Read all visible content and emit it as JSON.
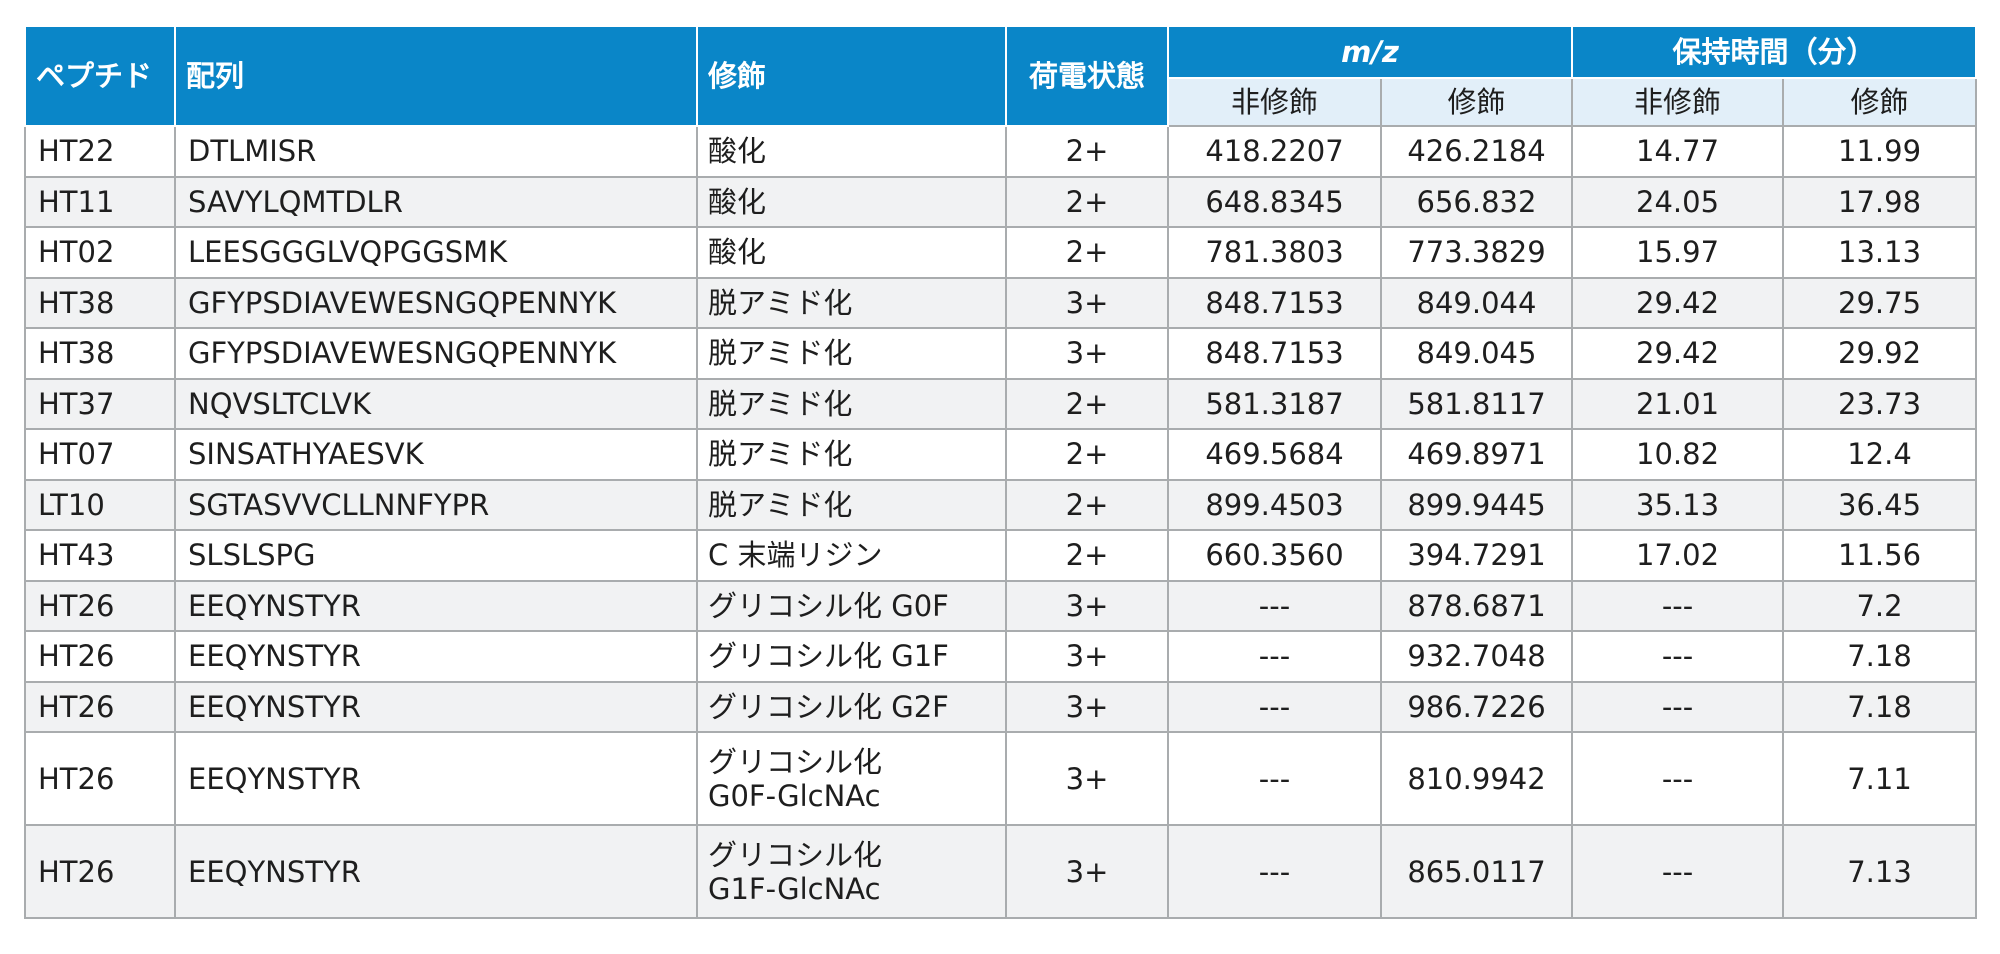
{
  "table": {
    "headers": {
      "peptide": "ペプチド",
      "sequence": "配列",
      "modification": "修飾",
      "charge": "荷電状態",
      "mz_group": "m/z",
      "rt_group": "保持時間（分）",
      "mz_unmod": "非修飾",
      "mz_mod": "修飾",
      "rt_unmod": "非修飾",
      "rt_mod": "修飾"
    },
    "rows": [
      {
        "peptide": "HT22",
        "sequence": "DTLMISR",
        "modification": [
          "酸化"
        ],
        "charge": "2+",
        "mz_unmod": "418.2207",
        "mz_mod": "426.2184",
        "rt_unmod": "14.77",
        "rt_mod": "11.99"
      },
      {
        "peptide": "HT11",
        "sequence": "SAVYLQMTDLR",
        "modification": [
          "酸化"
        ],
        "charge": "2+",
        "mz_unmod": "648.8345",
        "mz_mod": "656.832",
        "rt_unmod": "24.05",
        "rt_mod": "17.98"
      },
      {
        "peptide": "HT02",
        "sequence": "LEESGGGLVQPGGSMK",
        "modification": [
          "酸化"
        ],
        "charge": "2+",
        "mz_unmod": "781.3803",
        "mz_mod": "773.3829",
        "rt_unmod": "15.97",
        "rt_mod": "13.13"
      },
      {
        "peptide": "HT38",
        "sequence": "GFYPSDIAVEWESNGQPENNYK",
        "modification": [
          "脱アミド化"
        ],
        "charge": "3+",
        "mz_unmod": "848.7153",
        "mz_mod": "849.044",
        "rt_unmod": "29.42",
        "rt_mod": "29.75"
      },
      {
        "peptide": "HT38",
        "sequence": "GFYPSDIAVEWESNGQPENNYK",
        "modification": [
          "脱アミド化"
        ],
        "charge": "3+",
        "mz_unmod": "848.7153",
        "mz_mod": "849.045",
        "rt_unmod": "29.42",
        "rt_mod": "29.92"
      },
      {
        "peptide": "HT37",
        "sequence": "NQVSLTCLVK",
        "modification": [
          "脱アミド化"
        ],
        "charge": "2+",
        "mz_unmod": "581.3187",
        "mz_mod": "581.8117",
        "rt_unmod": "21.01",
        "rt_mod": "23.73"
      },
      {
        "peptide": "HT07",
        "sequence": "SINSATHYAESVK",
        "modification": [
          "脱アミド化"
        ],
        "charge": "2+",
        "mz_unmod": "469.5684",
        "mz_mod": "469.8971",
        "rt_unmod": "10.82",
        "rt_mod": "12.4"
      },
      {
        "peptide": "LT10",
        "sequence": "SGTASVVCLLNNFYPR",
        "modification": [
          "脱アミド化"
        ],
        "charge": "2+",
        "mz_unmod": "899.4503",
        "mz_mod": "899.9445",
        "rt_unmod": "35.13",
        "rt_mod": "36.45"
      },
      {
        "peptide": "HT43",
        "sequence": "SLSLSPG",
        "modification": [
          "C 末端リジン"
        ],
        "charge": "2+",
        "mz_unmod": "660.3560",
        "mz_mod": "394.7291",
        "rt_unmod": "17.02",
        "rt_mod": "11.56"
      },
      {
        "peptide": "HT26",
        "sequence": "EEQYNSTYR",
        "modification": [
          "グリコシル化 G0F"
        ],
        "charge": "3+",
        "mz_unmod": "---",
        "mz_mod": "878.6871",
        "rt_unmod": "---",
        "rt_mod": "7.2"
      },
      {
        "peptide": "HT26",
        "sequence": "EEQYNSTYR",
        "modification": [
          "グリコシル化 G1F"
        ],
        "charge": "3+",
        "mz_unmod": "---",
        "mz_mod": "932.7048",
        "rt_unmod": "---",
        "rt_mod": "7.18"
      },
      {
        "peptide": "HT26",
        "sequence": "EEQYNSTYR",
        "modification": [
          "グリコシル化 G2F"
        ],
        "charge": "3+",
        "mz_unmod": "---",
        "mz_mod": "986.7226",
        "rt_unmod": "---",
        "rt_mod": "7.18"
      },
      {
        "peptide": "HT26",
        "sequence": "EEQYNSTYR",
        "modification": [
          "グリコシル化",
          "G0F-GlcNAc"
        ],
        "charge": "3+",
        "mz_unmod": "---",
        "mz_mod": "810.9942",
        "rt_unmod": "---",
        "rt_mod": "7.11"
      },
      {
        "peptide": "HT26",
        "sequence": "EEQYNSTYR",
        "modification": [
          "グリコシル化",
          "G1F-GlcNAc"
        ],
        "charge": "3+",
        "mz_unmod": "---",
        "mz_mod": "865.0117",
        "rt_unmod": "---",
        "rt_mod": "7.13"
      }
    ]
  }
}
